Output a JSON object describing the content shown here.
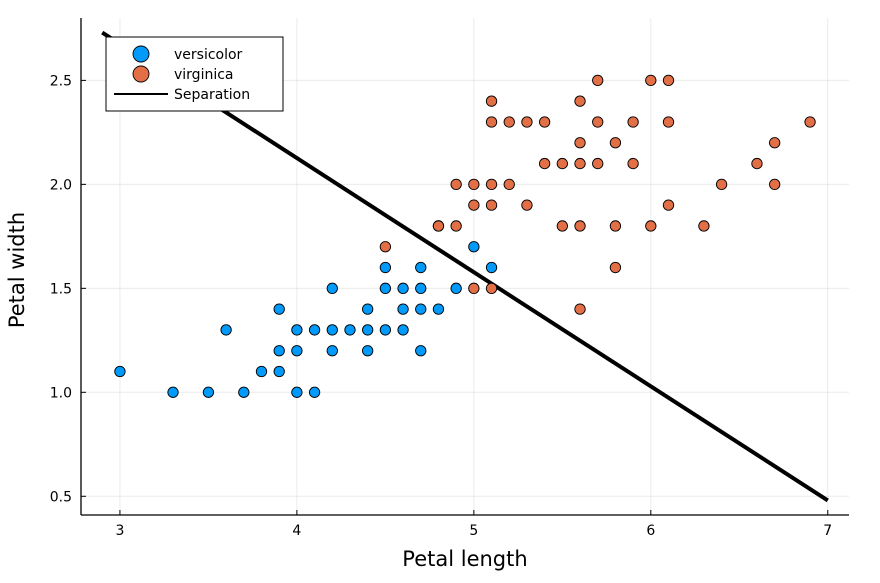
{
  "chart_data": {
    "type": "scatter",
    "title": "",
    "xlabel": "Petal length",
    "ylabel": "Petal width",
    "xlim": [
      2.78,
      7.12
    ],
    "ylim": [
      0.41,
      2.8
    ],
    "xticks": [
      3,
      4,
      5,
      6,
      7
    ],
    "yticks": [
      0.5,
      1.0,
      1.5,
      2.0,
      2.5
    ],
    "xtick_labels": [
      "3",
      "4",
      "5",
      "6",
      "7"
    ],
    "ytick_labels": [
      "0.5",
      "1.0",
      "1.5",
      "2.0",
      "2.5"
    ],
    "grid": true,
    "legend_position": "top-left",
    "series": [
      {
        "name": "versicolor",
        "kind": "scatter",
        "color": "#009AFA",
        "points": [
          [
            3.0,
            1.1
          ],
          [
            3.3,
            1.0
          ],
          [
            3.5,
            1.0
          ],
          [
            3.6,
            1.3
          ],
          [
            3.7,
            1.0
          ],
          [
            3.8,
            1.1
          ],
          [
            3.9,
            1.1
          ],
          [
            3.9,
            1.2
          ],
          [
            3.9,
            1.4
          ],
          [
            4.0,
            1.0
          ],
          [
            4.0,
            1.2
          ],
          [
            4.0,
            1.3
          ],
          [
            4.1,
            1.0
          ],
          [
            4.1,
            1.3
          ],
          [
            4.2,
            1.2
          ],
          [
            4.2,
            1.3
          ],
          [
            4.2,
            1.5
          ],
          [
            4.3,
            1.3
          ],
          [
            4.4,
            1.2
          ],
          [
            4.4,
            1.3
          ],
          [
            4.4,
            1.4
          ],
          [
            4.5,
            1.3
          ],
          [
            4.5,
            1.5
          ],
          [
            4.5,
            1.6
          ],
          [
            4.6,
            1.3
          ],
          [
            4.6,
            1.4
          ],
          [
            4.6,
            1.5
          ],
          [
            4.7,
            1.2
          ],
          [
            4.7,
            1.4
          ],
          [
            4.7,
            1.5
          ],
          [
            4.7,
            1.6
          ],
          [
            4.8,
            1.4
          ],
          [
            4.8,
            1.8
          ],
          [
            4.9,
            1.5
          ],
          [
            5.0,
            1.7
          ],
          [
            5.1,
            1.6
          ]
        ]
      },
      {
        "name": "virginica",
        "kind": "scatter",
        "color": "#E26F46",
        "points": [
          [
            4.5,
            1.7
          ],
          [
            4.8,
            1.8
          ],
          [
            4.9,
            1.8
          ],
          [
            4.9,
            2.0
          ],
          [
            5.0,
            1.5
          ],
          [
            5.0,
            1.9
          ],
          [
            5.0,
            2.0
          ],
          [
            5.1,
            1.5
          ],
          [
            5.1,
            1.9
          ],
          [
            5.1,
            2.0
          ],
          [
            5.1,
            2.3
          ],
          [
            5.1,
            2.4
          ],
          [
            5.2,
            2.0
          ],
          [
            5.2,
            2.3
          ],
          [
            5.3,
            1.9
          ],
          [
            5.3,
            2.3
          ],
          [
            5.4,
            2.1
          ],
          [
            5.4,
            2.3
          ],
          [
            5.5,
            1.8
          ],
          [
            5.5,
            2.1
          ],
          [
            5.6,
            1.4
          ],
          [
            5.6,
            1.8
          ],
          [
            5.6,
            2.1
          ],
          [
            5.6,
            2.2
          ],
          [
            5.6,
            2.4
          ],
          [
            5.7,
            2.1
          ],
          [
            5.7,
            2.3
          ],
          [
            5.7,
            2.5
          ],
          [
            5.8,
            1.6
          ],
          [
            5.8,
            1.8
          ],
          [
            5.8,
            2.2
          ],
          [
            5.9,
            2.1
          ],
          [
            5.9,
            2.3
          ],
          [
            6.0,
            1.8
          ],
          [
            6.0,
            2.5
          ],
          [
            6.1,
            1.9
          ],
          [
            6.1,
            2.3
          ],
          [
            6.1,
            2.5
          ],
          [
            6.3,
            1.8
          ],
          [
            6.4,
            2.0
          ],
          [
            6.6,
            2.1
          ],
          [
            6.7,
            2.0
          ],
          [
            6.7,
            2.2
          ],
          [
            6.9,
            2.3
          ]
        ]
      },
      {
        "name": "Separation",
        "kind": "line",
        "color": "#000000",
        "points": [
          [
            2.9,
            2.73
          ],
          [
            7.0,
            0.48
          ]
        ]
      }
    ]
  }
}
